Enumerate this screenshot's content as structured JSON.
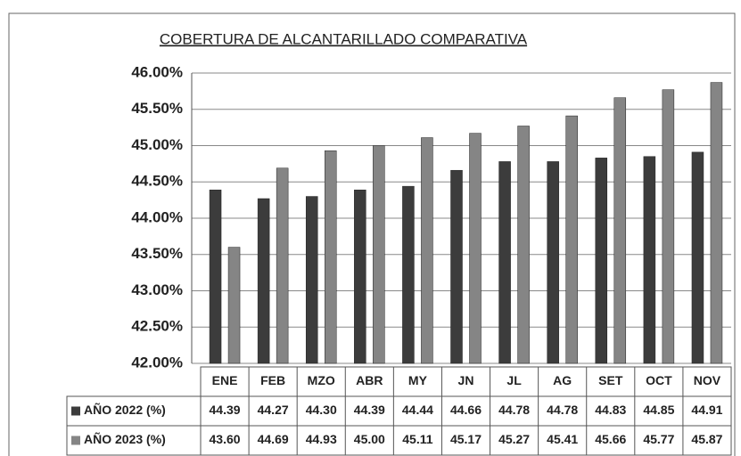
{
  "chart_data": {
    "type": "bar",
    "title": "COBERTURA DE ALCANTARILLADO COMPARATIVA",
    "categories": [
      "ENE",
      "FEB",
      "MZO",
      "ABR",
      "MY",
      "JN",
      "JL",
      "AG",
      "SET",
      "OCT",
      "NOV"
    ],
    "series": [
      {
        "name": "AÑO 2022 (%)",
        "color": "#3c3c3c",
        "values": [
          44.39,
          44.27,
          44.3,
          44.39,
          44.44,
          44.66,
          44.78,
          44.78,
          44.83,
          44.85,
          44.91
        ],
        "value_labels": [
          "44.39",
          "44.27",
          "44.30",
          "44.39",
          "44.44",
          "44.66",
          "44.78",
          "44.78",
          "44.83",
          "44.85",
          "44.91"
        ]
      },
      {
        "name": "AÑO 2023 (%)",
        "color": "#858585",
        "values": [
          43.6,
          44.69,
          44.93,
          45.0,
          45.11,
          45.17,
          45.27,
          45.41,
          45.66,
          45.77,
          45.87
        ],
        "value_labels": [
          "43.60",
          "44.69",
          "44.93",
          "45.00",
          "45.11",
          "45.17",
          "45.27",
          "45.41",
          "45.66",
          "45.77",
          "45.87"
        ]
      }
    ],
    "ylim": [
      42,
      46
    ],
    "yticks": [
      {
        "value": 42,
        "label": "42.00%"
      },
      {
        "value": 42.5,
        "label": "42.50%"
      },
      {
        "value": 43,
        "label": "43.00%"
      },
      {
        "value": 43.5,
        "label": "43.50%"
      },
      {
        "value": 44,
        "label": "44.00%"
      },
      {
        "value": 44.5,
        "label": "44.50%"
      },
      {
        "value": 45,
        "label": "45.00%"
      },
      {
        "value": 45.5,
        "label": "45.50%"
      },
      {
        "value": 46,
        "label": "46.00%"
      }
    ],
    "grid": true
  }
}
